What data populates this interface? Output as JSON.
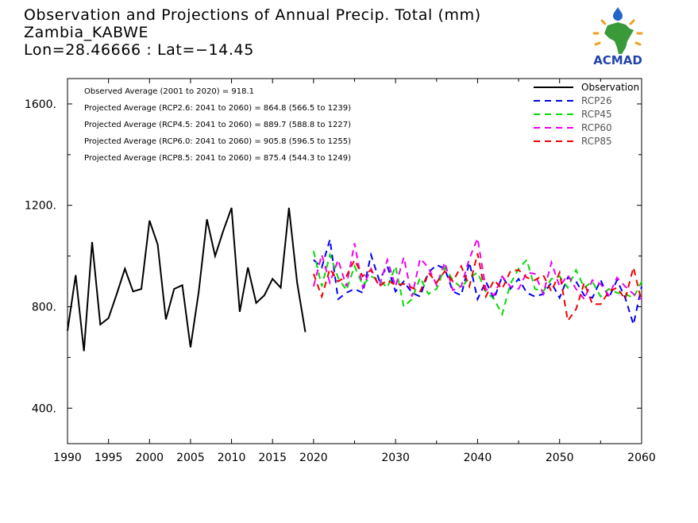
{
  "header": {
    "title": "Observation and Projections of Annual Precip. Total (mm)",
    "station": "Zambia_KABWE",
    "coords": "Lon=28.46666 : Lat=−14.45"
  },
  "logo": {
    "text": "ACMAD",
    "icon": "africa-map-logo-icon",
    "colors": {
      "africa": "#3a9a3a",
      "sun": "#f0a020",
      "drop": "#2266cc",
      "text": "#2244aa"
    }
  },
  "annotations": [
    "Observed Average (2001 to 2020) = 918.1",
    "Projected Average (RCP2.6: 2041 to 2060) = 864.8 (566.5 to 1239)",
    "Projected Average (RCP4.5: 2041 to 2060) = 889.7 (588.8 to 1227)",
    "Projected Average (RCP6.0: 2041 to 2060) = 905.8 (596.5 to 1255)",
    "Projected Average (RCP8.5: 2041 to 2060) = 875.4 (544.3 to 1249)"
  ],
  "chart_data": {
    "type": "line",
    "xlim": [
      1990,
      2060
    ],
    "ylim": [
      260,
      1700
    ],
    "x_ticks": [
      {
        "v": 1990,
        "label": "1990"
      },
      {
        "v": 1995,
        "label": "1995"
      },
      {
        "v": 2000,
        "label": "2000"
      },
      {
        "v": 2005,
        "label": "2005"
      },
      {
        "v": 2010,
        "label": "2010"
      },
      {
        "v": 2015,
        "label": "2015"
      },
      {
        "v": 2020,
        "label": "2020"
      },
      {
        "v": 2030,
        "label": "2030"
      },
      {
        "v": 2040,
        "label": "2040"
      },
      {
        "v": 2050,
        "label": "2050"
      },
      {
        "v": 2060,
        "label": "2060"
      }
    ],
    "y_ticks": [
      {
        "v": 400,
        "label": "400."
      },
      {
        "v": 800,
        "label": "800."
      },
      {
        "v": 1200,
        "label": "1200."
      },
      {
        "v": 1600,
        "label": "1600."
      }
    ],
    "grid": false,
    "legend_position": "top-right",
    "series": [
      {
        "name": "Observation",
        "color": "#000000",
        "style": "solid",
        "x": [
          1990,
          1991,
          1992,
          1993,
          1994,
          1995,
          1996,
          1997,
          1998,
          1999,
          2000,
          2001,
          2002,
          2003,
          2004,
          2005,
          2006,
          2007,
          2008,
          2009,
          2010,
          2011,
          2012,
          2013,
          2014,
          2015,
          2016,
          2017,
          2018,
          2019,
          2020
        ],
        "values": [
          705,
          925,
          625,
          1055,
          730,
          755,
          850,
          950,
          860,
          870,
          1140,
          1045,
          750,
          870,
          885,
          640,
          860,
          1145,
          1000,
          1100,
          1190,
          780,
          955,
          815,
          845,
          910,
          875,
          1190,
          895,
          700,
          null
        ]
      },
      {
        "name": "RCP26",
        "color": "#0000ee",
        "style": "dashed",
        "x": [
          2020,
          2021,
          2022,
          2023,
          2024,
          2025,
          2026,
          2027,
          2028,
          2029,
          2030,
          2031,
          2032,
          2033,
          2034,
          2035,
          2036,
          2037,
          2038,
          2039,
          2040,
          2041,
          2042,
          2043,
          2044,
          2045,
          2046,
          2047,
          2048,
          2049,
          2050,
          2051,
          2052,
          2053,
          2054,
          2055,
          2056,
          2057,
          2058,
          2059,
          2060
        ],
        "values": [
          985,
          955,
          1065,
          830,
          855,
          870,
          855,
          1005,
          905,
          960,
          860,
          900,
          855,
          840,
          935,
          965,
          950,
          860,
          845,
          975,
          830,
          900,
          830,
          920,
          870,
          910,
          855,
          840,
          850,
          895,
          835,
          915,
          900,
          845,
          835,
          905,
          835,
          905,
          835,
          730,
          880
        ]
      },
      {
        "name": "RCP45",
        "color": "#00dd00",
        "style": "dashed",
        "x": [
          2020,
          2021,
          2022,
          2023,
          2024,
          2025,
          2026,
          2027,
          2028,
          2029,
          2030,
          2031,
          2032,
          2033,
          2034,
          2035,
          2036,
          2037,
          2038,
          2039,
          2040,
          2041,
          2042,
          2043,
          2044,
          2045,
          2046,
          2047,
          2048,
          2049,
          2050,
          2051,
          2052,
          2053,
          2054,
          2055,
          2056,
          2057,
          2058,
          2059,
          2060
        ],
        "values": [
          1020,
          880,
          1005,
          915,
          865,
          960,
          885,
          920,
          905,
          875,
          960,
          800,
          830,
          915,
          850,
          870,
          955,
          905,
          875,
          915,
          935,
          860,
          830,
          770,
          890,
          950,
          985,
          870,
          860,
          910,
          920,
          875,
          945,
          875,
          900,
          840,
          870,
          855,
          850,
          835,
          900
        ]
      },
      {
        "name": "RCP60",
        "color": "#ee00ee",
        "style": "dashed",
        "x": [
          2020,
          2021,
          2022,
          2023,
          2024,
          2025,
          2026,
          2027,
          2028,
          2029,
          2030,
          2031,
          2032,
          2033,
          2034,
          2035,
          2036,
          2037,
          2038,
          2039,
          2040,
          2041,
          2042,
          2043,
          2044,
          2045,
          2046,
          2047,
          2048,
          2049,
          2050,
          2051,
          2052,
          2053,
          2054,
          2055,
          2056,
          2057,
          2058,
          2059,
          2060
        ],
        "values": [
          880,
          1005,
          895,
          985,
          880,
          1050,
          875,
          950,
          880,
          985,
          880,
          995,
          840,
          990,
          955,
          885,
          975,
          865,
          880,
          990,
          1070,
          870,
          845,
          920,
          880,
          870,
          935,
          930,
          850,
          975,
          880,
          925,
          870,
          830,
          905,
          890,
          845,
          915,
          880,
          850,
          830
        ]
      },
      {
        "name": "RCP85",
        "color": "#ee0000",
        "style": "dashed",
        "x": [
          2020,
          2021,
          2022,
          2023,
          2024,
          2025,
          2026,
          2027,
          2028,
          2029,
          2030,
          2031,
          2032,
          2033,
          2034,
          2035,
          2036,
          2037,
          2038,
          2039,
          2040,
          2041,
          2042,
          2043,
          2044,
          2045,
          2046,
          2047,
          2048,
          2049,
          2050,
          2051,
          2052,
          2053,
          2054,
          2055,
          2056,
          2057,
          2058,
          2059,
          2060
        ],
        "values": [
          930,
          840,
          950,
          900,
          920,
          985,
          920,
          945,
          880,
          905,
          885,
          890,
          875,
          860,
          935,
          895,
          940,
          900,
          960,
          880,
          1010,
          840,
          905,
          870,
          940,
          945,
          915,
          905,
          925,
          860,
          935,
          745,
          790,
          895,
          810,
          810,
          860,
          875,
          830,
          955,
          820
        ]
      }
    ]
  }
}
